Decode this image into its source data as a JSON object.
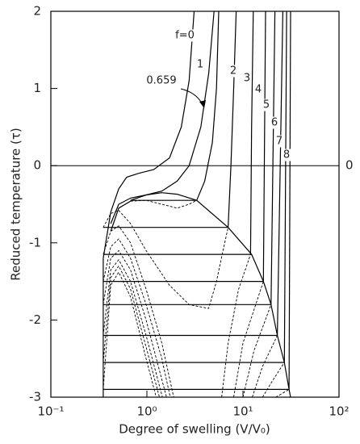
{
  "chart_data": {
    "type": "line",
    "xlabel": "Degree of swelling (V/V₀)",
    "ylabel": "Reduced temperature (τ)",
    "xscale": "log",
    "xlim": [
      0.1,
      100
    ],
    "ylim": [
      -3,
      2
    ],
    "xticks": [
      {
        "value": 0.1,
        "label": "10⁻¹"
      },
      {
        "value": 1,
        "label": "10⁰"
      },
      {
        "value": 10,
        "label": "10¹"
      },
      {
        "value": 100,
        "label": "10²"
      }
    ],
    "yticks": [
      -3,
      -2,
      -1,
      0,
      1,
      2
    ],
    "y2ticks": [
      0
    ],
    "color": "#000000",
    "series": [
      {
        "name": "f=0",
        "style": "solid",
        "x": [
          0.351,
          0.42,
          0.509,
          0.615,
          0.814,
          1.18,
          1.72,
          2.28,
          2.75,
          3.1
        ],
        "values": [
          -1.2,
          -0.6,
          -0.3,
          -0.15,
          -0.1,
          -0.05,
          0.1,
          0.5,
          1.1,
          2.0
        ]
      },
      {
        "name": "0.659",
        "style": "solid",
        "x": [
          0.42,
          0.509,
          0.675,
          0.98,
          1.43,
          2.07,
          2.75,
          3.64,
          4.4,
          5.0
        ],
        "values": [
          -0.75,
          -0.5,
          -0.42,
          -0.38,
          -0.33,
          -0.2,
          0,
          0.5,
          1.2,
          2.0
        ]
      },
      {
        "name": "1",
        "style": "solid",
        "x": [
          0.42,
          0.509,
          0.675,
          null,
          3.3,
          4.0,
          4.8,
          5.3,
          5.6
        ],
        "values": [
          -0.85,
          -0.55,
          -0.46,
          null,
          -0.45,
          -0.2,
          0.3,
          1.0,
          2.0
        ]
      },
      {
        "name": "2",
        "style": "solid",
        "x": [
          7.0,
          7.5,
          8.0,
          8.5
        ],
        "values": [
          -0.8,
          0,
          1,
          2
        ]
      },
      {
        "name": "3",
        "style": "solid",
        "x": [
          12.0,
          12.3,
          12.8
        ],
        "values": [
          -1.15,
          0.5,
          2
        ]
      },
      {
        "name": "4",
        "style": "solid",
        "x": [
          16.3,
          17.2
        ],
        "values": [
          -1.5,
          2
        ]
      },
      {
        "name": "5",
        "style": "solid",
        "x": [
          19.6,
          21.5
        ],
        "values": [
          -1.8,
          2
        ]
      },
      {
        "name": "6",
        "style": "solid",
        "x": [
          22.8,
          26
        ],
        "values": [
          -2.2,
          2
        ]
      },
      {
        "name": "7",
        "style": "solid",
        "x": [
          27,
          28.5
        ],
        "values": [
          -2.55,
          2
        ]
      },
      {
        "name": "8",
        "style": "solid",
        "x": [
          30.2,
          31.3
        ],
        "values": [
          -2.9,
          2
        ]
      },
      {
        "style": "dashed",
        "x": [
          0.675,
          0.98,
          1.43,
          2.07,
          2.75,
          3.3
        ],
        "values": [
          -0.46,
          -0.45,
          -0.5,
          -0.55,
          -0.5,
          -0.45
        ]
      },
      {
        "style": "dashed",
        "x": [
          0.351,
          0.42,
          0.509,
          0.675,
          0.98,
          1.72,
          2.75,
          4.39,
          5.3,
          6.2,
          7.0
        ],
        "values": [
          -0.8,
          -0.62,
          -0.58,
          -0.75,
          -1.1,
          -1.55,
          -1.8,
          -1.85,
          -1.5,
          -1.1,
          -0.8
        ]
      },
      {
        "style": "dashed",
        "x": [
          0.351,
          0.42,
          0.509,
          0.675,
          0.98,
          1.43,
          1.9
        ],
        "values": [
          -1.15,
          -0.85,
          -0.78,
          -1.0,
          -1.6,
          -2.3,
          -3
        ]
      },
      {
        "style": "dashed",
        "x": [
          0.351,
          0.42,
          0.509,
          0.675,
          0.98,
          1.43,
          1.75
        ],
        "values": [
          -1.5,
          -1.05,
          -0.95,
          -1.2,
          -1.8,
          -2.5,
          -3
        ]
      },
      {
        "style": "dashed",
        "x": [
          0.351,
          0.42,
          0.509,
          0.675,
          0.98,
          1.6
        ],
        "values": [
          -1.8,
          -1.2,
          -1.1,
          -1.35,
          -2.0,
          -3
        ]
      },
      {
        "style": "dashed",
        "x": [
          0.351,
          0.42,
          0.509,
          0.675,
          0.98,
          1.45
        ],
        "values": [
          -2.2,
          -1.35,
          -1.22,
          -1.5,
          -2.2,
          -3
        ]
      },
      {
        "style": "dashed",
        "x": [
          0.351,
          0.42,
          0.509,
          0.675,
          0.98,
          1.35
        ],
        "values": [
          -2.55,
          -1.45,
          -1.3,
          -1.6,
          -2.35,
          -3
        ]
      },
      {
        "style": "dashed",
        "x": [
          0.351,
          0.42,
          0.509,
          0.675,
          0.98,
          1.25
        ],
        "values": [
          -2.9,
          -1.55,
          -1.38,
          -1.7,
          -2.5,
          -3
        ]
      },
      {
        "style": "dashed",
        "x": [
          6.0,
          7.0,
          9.0,
          12.0
        ],
        "values": [
          -3,
          -2.3,
          -1.6,
          -1.15
        ]
      },
      {
        "style": "dashed",
        "x": [
          8.0,
          10,
          16.3
        ],
        "values": [
          -3,
          -2.3,
          -1.5
        ]
      },
      {
        "style": "dashed",
        "x": [
          10,
          13,
          19.6
        ],
        "values": [
          -3,
          -2.4,
          -1.8
        ]
      },
      {
        "style": "dashed",
        "x": [
          12.5,
          16,
          22.8
        ],
        "values": [
          -3,
          -2.6,
          -2.2
        ]
      },
      {
        "style": "dashed",
        "x": [
          16,
          20,
          27
        ],
        "values": [
          -3,
          -2.8,
          -2.55
        ]
      },
      {
        "style": "dashed",
        "x": [
          22,
          30.2
        ],
        "values": [
          -3,
          -2.9
        ]
      },
      {
        "style": "solid",
        "x": [
          0.351,
          0.351
        ],
        "values": [
          -3,
          -1.2
        ]
      },
      {
        "style": "solid",
        "x": [
          0.675,
          0.98,
          1.43,
          2.07,
          3.3,
          7.0,
          12.3,
          16.3,
          19.6,
          22.8,
          27,
          30.2,
          31.3
        ],
        "values": [
          -0.45,
          -0.38,
          -0.35,
          -0.37,
          -0.45,
          -0.8,
          -1.15,
          -1.5,
          -1.8,
          -2.2,
          -2.55,
          -2.9,
          -3
        ]
      },
      {
        "style": "solid",
        "x": [
          0.675,
          3.3
        ],
        "values": [
          -0.45,
          -0.45
        ]
      },
      {
        "style": "solid",
        "x": [
          0.351,
          7.0
        ],
        "values": [
          -0.8,
          -0.8
        ]
      },
      {
        "style": "solid",
        "x": [
          0.351,
          12.3
        ],
        "values": [
          -1.15,
          -1.15
        ]
      },
      {
        "style": "solid",
        "x": [
          0.351,
          16.3
        ],
        "values": [
          -1.5,
          -1.5
        ]
      },
      {
        "style": "solid",
        "x": [
          0.351,
          19.6
        ],
        "values": [
          -1.8,
          -1.8
        ]
      },
      {
        "style": "solid",
        "x": [
          0.351,
          22.8
        ],
        "values": [
          -2.2,
          -2.2
        ]
      },
      {
        "style": "solid",
        "x": [
          0.351,
          27
        ],
        "values": [
          -2.55,
          -2.55
        ]
      },
      {
        "style": "solid",
        "x": [
          0.351,
          30.2
        ],
        "values": [
          -2.9,
          -2.9
        ]
      }
    ]
  }
}
